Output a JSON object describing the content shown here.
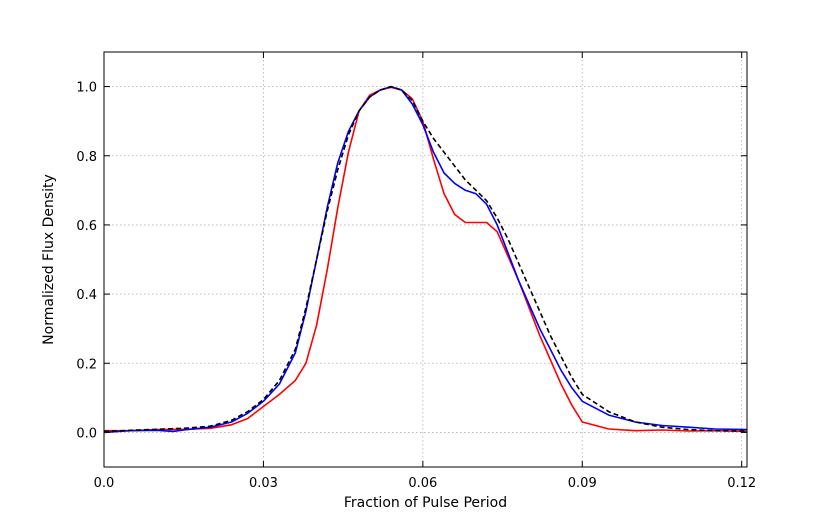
{
  "chart_data": {
    "type": "line",
    "title": "",
    "xlabel": "Fraction of Pulse Period",
    "ylabel": "Normalized Flux Density",
    "xlim": [
      0.0,
      0.121
    ],
    "ylim": [
      -0.1,
      1.1
    ],
    "xticks": [
      "0.0",
      "0.03",
      "0.06",
      "0.09",
      "0.12"
    ],
    "xtick_values": [
      0.0,
      0.03,
      0.06,
      0.09,
      0.12
    ],
    "yticks": [
      "0.0",
      "0.2",
      "0.4",
      "0.6",
      "0.8",
      "1.0"
    ],
    "ytick_values": [
      0.0,
      0.2,
      0.4,
      0.6,
      0.8,
      1.0
    ],
    "grid": true,
    "legend": "none",
    "series": [
      {
        "color": "#ff0000",
        "style": "solid",
        "x": [
          0.0,
          0.005,
          0.01,
          0.015,
          0.02,
          0.024,
          0.027,
          0.03,
          0.033,
          0.036,
          0.038,
          0.04,
          0.042,
          0.044,
          0.046,
          0.048,
          0.05,
          0.052,
          0.054,
          0.056,
          0.058,
          0.06,
          0.062,
          0.064,
          0.066,
          0.068,
          0.07,
          0.072,
          0.074,
          0.076,
          0.078,
          0.08,
          0.082,
          0.084,
          0.086,
          0.088,
          0.09,
          0.095,
          0.1,
          0.105,
          0.11,
          0.115,
          0.121
        ],
        "y": [
          0.005,
          0.005,
          0.008,
          0.009,
          0.012,
          0.022,
          0.04,
          0.075,
          0.11,
          0.15,
          0.2,
          0.31,
          0.47,
          0.65,
          0.81,
          0.93,
          0.975,
          0.99,
          0.998,
          0.99,
          0.965,
          0.9,
          0.79,
          0.69,
          0.63,
          0.607,
          0.607,
          0.607,
          0.58,
          0.51,
          0.44,
          0.36,
          0.28,
          0.21,
          0.14,
          0.08,
          0.03,
          0.01,
          0.005,
          0.007,
          0.004,
          0.005,
          0.003
        ]
      },
      {
        "color": "#0000ff",
        "style": "solid",
        "x": [
          0.0,
          0.005,
          0.01,
          0.013,
          0.015,
          0.02,
          0.024,
          0.027,
          0.03,
          0.033,
          0.036,
          0.038,
          0.04,
          0.042,
          0.044,
          0.046,
          0.048,
          0.05,
          0.052,
          0.054,
          0.056,
          0.058,
          0.06,
          0.062,
          0.064,
          0.066,
          0.068,
          0.07,
          0.072,
          0.074,
          0.076,
          0.078,
          0.08,
          0.082,
          0.084,
          0.086,
          0.088,
          0.09,
          0.095,
          0.1,
          0.105,
          0.11,
          0.115,
          0.121
        ],
        "y": [
          0.0,
          0.005,
          0.006,
          0.003,
          0.007,
          0.015,
          0.03,
          0.055,
          0.09,
          0.14,
          0.23,
          0.35,
          0.5,
          0.65,
          0.78,
          0.87,
          0.93,
          0.97,
          0.99,
          1.0,
          0.99,
          0.95,
          0.89,
          0.81,
          0.75,
          0.72,
          0.7,
          0.69,
          0.66,
          0.6,
          0.52,
          0.44,
          0.37,
          0.3,
          0.24,
          0.18,
          0.13,
          0.09,
          0.05,
          0.03,
          0.02,
          0.015,
          0.01,
          0.008
        ]
      },
      {
        "color": "#000000",
        "style": "dashed",
        "x": [
          0.0,
          0.005,
          0.01,
          0.015,
          0.02,
          0.024,
          0.027,
          0.03,
          0.033,
          0.036,
          0.038,
          0.04,
          0.042,
          0.044,
          0.046,
          0.048,
          0.05,
          0.052,
          0.054,
          0.056,
          0.058,
          0.06,
          0.062,
          0.064,
          0.066,
          0.068,
          0.07,
          0.072,
          0.074,
          0.076,
          0.078,
          0.08,
          0.082,
          0.084,
          0.086,
          0.088,
          0.09,
          0.095,
          0.1,
          0.105,
          0.11,
          0.115,
          0.121
        ],
        "y": [
          0.003,
          0.006,
          0.009,
          0.012,
          0.018,
          0.035,
          0.06,
          0.095,
          0.15,
          0.24,
          0.36,
          0.5,
          0.64,
          0.76,
          0.86,
          0.93,
          0.97,
          0.99,
          1.0,
          0.99,
          0.96,
          0.9,
          0.85,
          0.81,
          0.77,
          0.73,
          0.7,
          0.67,
          0.62,
          0.56,
          0.49,
          0.42,
          0.35,
          0.28,
          0.22,
          0.16,
          0.11,
          0.06,
          0.03,
          0.015,
          0.008,
          0.005,
          0.004
        ]
      }
    ]
  }
}
